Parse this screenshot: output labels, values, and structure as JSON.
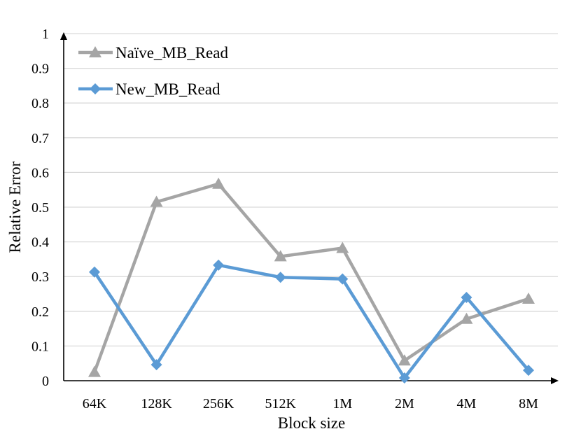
{
  "chart_data": {
    "type": "line",
    "title": "",
    "xlabel": "Block size",
    "ylabel": "Relative Error",
    "categories": [
      "64K",
      "128K",
      "256K",
      "512K",
      "1M",
      "2M",
      "4M",
      "8M"
    ],
    "ylim": [
      0,
      1
    ],
    "yticks": [
      "0",
      "0.1",
      "0.2",
      "0.3",
      "0.4",
      "0.5",
      "0.6",
      "0.7",
      "0.8",
      "0.9",
      "1"
    ],
    "grid": true,
    "legend_position": "top-left",
    "series": [
      {
        "name": "Naïve_MB_Read",
        "marker": "triangle",
        "color": "#a5a5a5",
        "values": [
          0.025,
          0.515,
          0.567,
          0.358,
          0.382,
          0.058,
          0.178,
          0.236
        ]
      },
      {
        "name": "New_MB_Read",
        "marker": "diamond",
        "color": "#5b9bd5",
        "values": [
          0.313,
          0.046,
          0.333,
          0.298,
          0.293,
          0.008,
          0.24,
          0.03
        ]
      }
    ]
  }
}
